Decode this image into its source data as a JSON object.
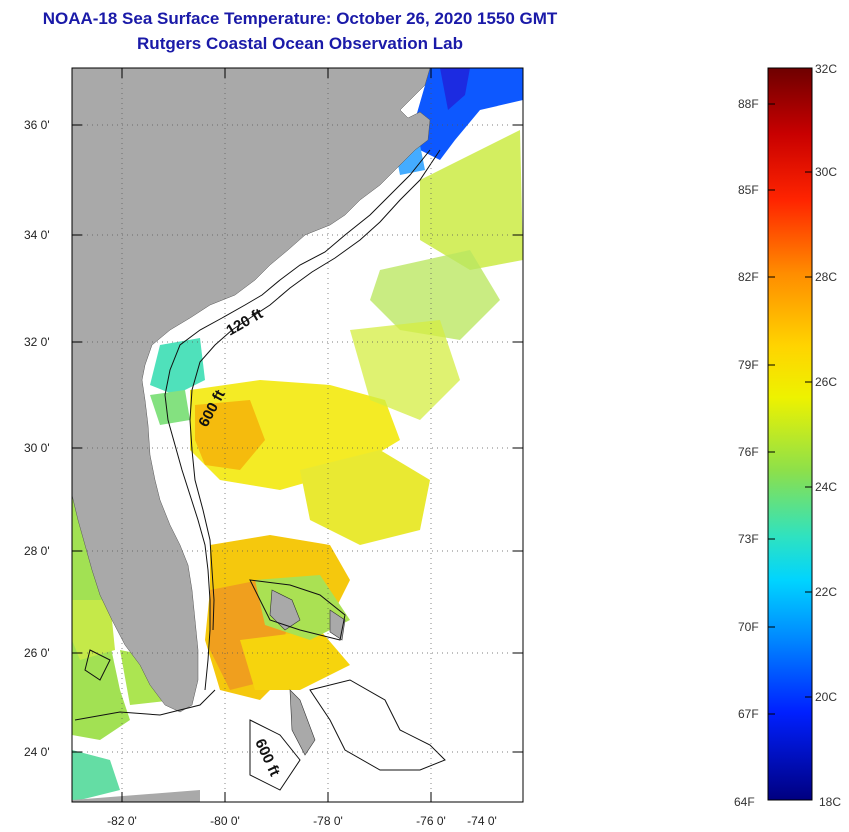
{
  "title_line1": "NOAA-18 Sea Surface Temperature:  October 26, 2020 1550 GMT",
  "title_line2": "Rutgers Coastal Ocean Observation Lab",
  "map": {
    "lat_ticks": [
      "36 0'",
      "34 0'",
      "32 0'",
      "30 0'",
      "28 0'",
      "26 0'",
      "24 0'"
    ],
    "lon_ticks": [
      "-82 0'",
      "-80 0'",
      "-78 0'",
      "-76 0'",
      "-74 0'"
    ],
    "contour_labels": [
      "120 ft",
      "600 ft",
      "600 ft"
    ],
    "colors": {
      "land": "#a9a9a9",
      "ocean_bg": "#ffffff"
    }
  },
  "colorbar": {
    "fahrenheit": [
      "88F",
      "85F",
      "82F",
      "79F",
      "76F",
      "73F",
      "70F",
      "67F",
      "64F"
    ],
    "celsius": [
      "32C",
      "30C",
      "28C",
      "26C",
      "24C",
      "22C",
      "20C",
      "18C"
    ],
    "gradient": [
      "#7a0000",
      "#d00000",
      "#ff3a00",
      "#ff8a00",
      "#ffd200",
      "#e8f000",
      "#9be038",
      "#36e0b0",
      "#00d8ff",
      "#0090ff",
      "#0030ff",
      "#00008c"
    ]
  }
}
